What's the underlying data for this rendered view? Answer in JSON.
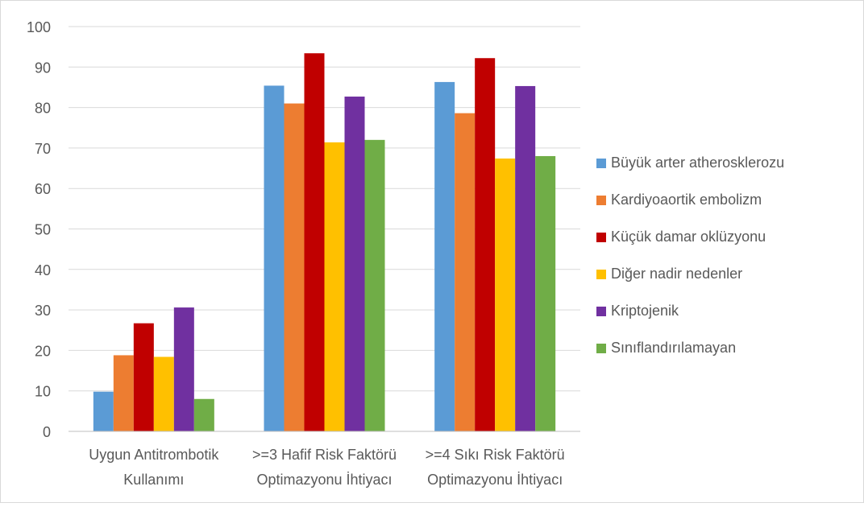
{
  "chart_data": {
    "type": "bar",
    "title": "",
    "xlabel": "",
    "ylabel": "",
    "ylim": [
      0,
      100
    ],
    "yticks": [
      0,
      10,
      20,
      30,
      40,
      50,
      60,
      70,
      80,
      90,
      100
    ],
    "grid": true,
    "legend_position": "right",
    "categories": [
      [
        "Uygun Antitrombotik",
        "Kullanımı"
      ],
      [
        ">=3 Hafif Risk Faktörü",
        "Optimazyonu İhtiyacı"
      ],
      [
        ">=4 Sıkı Risk Faktörü",
        "Optimazyonu İhtiyacı"
      ]
    ],
    "series": [
      {
        "name": "Büyük arter atherosklerozu",
        "color": "#5B9BD5",
        "values": [
          9.8,
          85.4,
          86.3
        ]
      },
      {
        "name": "Kardiyoaortik embolizm",
        "color": "#ED7D31",
        "values": [
          18.8,
          81.0,
          78.6
        ]
      },
      {
        "name": "Küçük damar oklüzyonu",
        "color": "#C00000",
        "values": [
          26.7,
          93.4,
          92.2
        ]
      },
      {
        "name": "Diğer nadir nedenler",
        "color": "#FFC000",
        "values": [
          18.4,
          71.4,
          67.4
        ]
      },
      {
        "name": "Kriptojenik",
        "color": "#7030A0",
        "values": [
          30.6,
          82.7,
          85.3
        ]
      },
      {
        "name": "Sınıflandırılamayan",
        "color": "#70AD47",
        "values": [
          8.0,
          72.0,
          68.0
        ]
      }
    ]
  }
}
